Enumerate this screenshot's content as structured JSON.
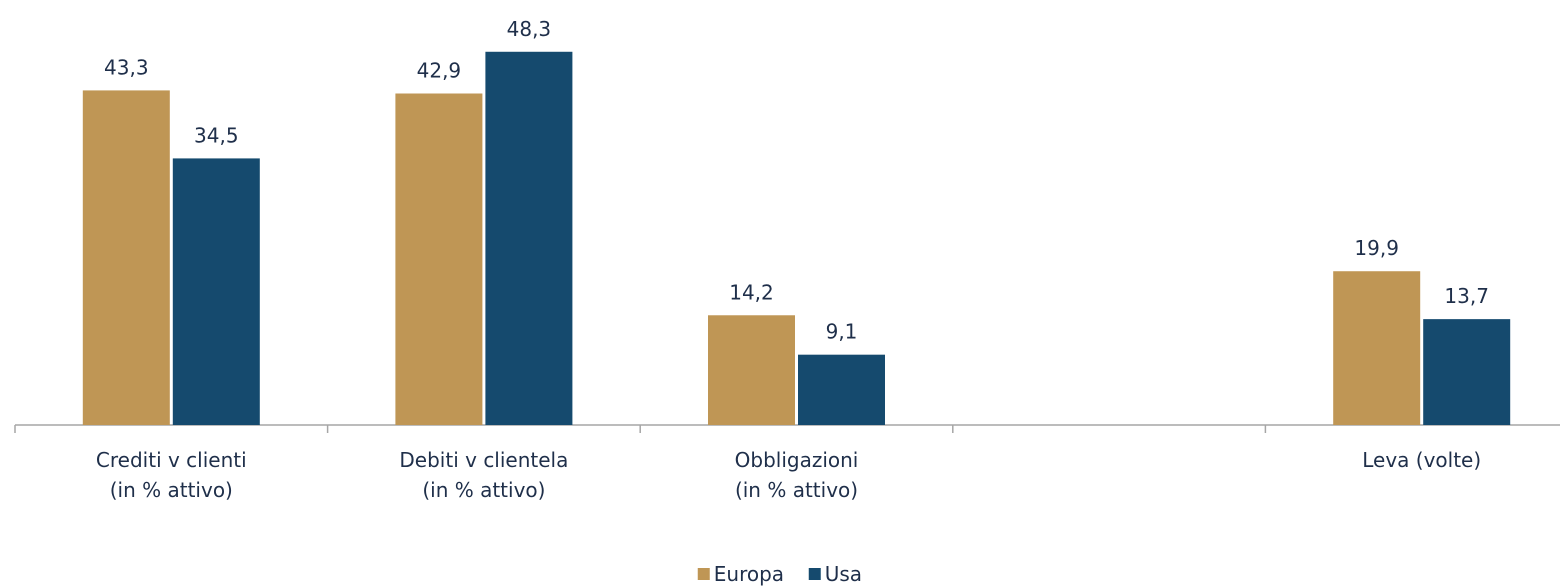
{
  "chart_data": {
    "type": "bar",
    "categories": [
      "Crediti v clienti\n(in % attivo)",
      "Debiti v clientela\n(in % attivo)",
      "Obbligazioni\n(in % attivo)",
      null,
      "Leva (volte)"
    ],
    "series": [
      {
        "name": "Europa",
        "color": "#bf9655",
        "values": [
          43.3,
          42.9,
          14.2,
          null,
          19.9
        ],
        "value_labels": [
          "43,3",
          "42,9",
          "14,2",
          null,
          "19,9"
        ]
      },
      {
        "name": "Usa",
        "color": "#154a6e",
        "values": [
          34.5,
          48.3,
          9.1,
          null,
          13.7
        ],
        "value_labels": [
          "34,5",
          "48,3",
          "9,1",
          null,
          "13,7"
        ]
      }
    ],
    "ylim": [
      0,
      55
    ],
    "legend": "bottom"
  }
}
